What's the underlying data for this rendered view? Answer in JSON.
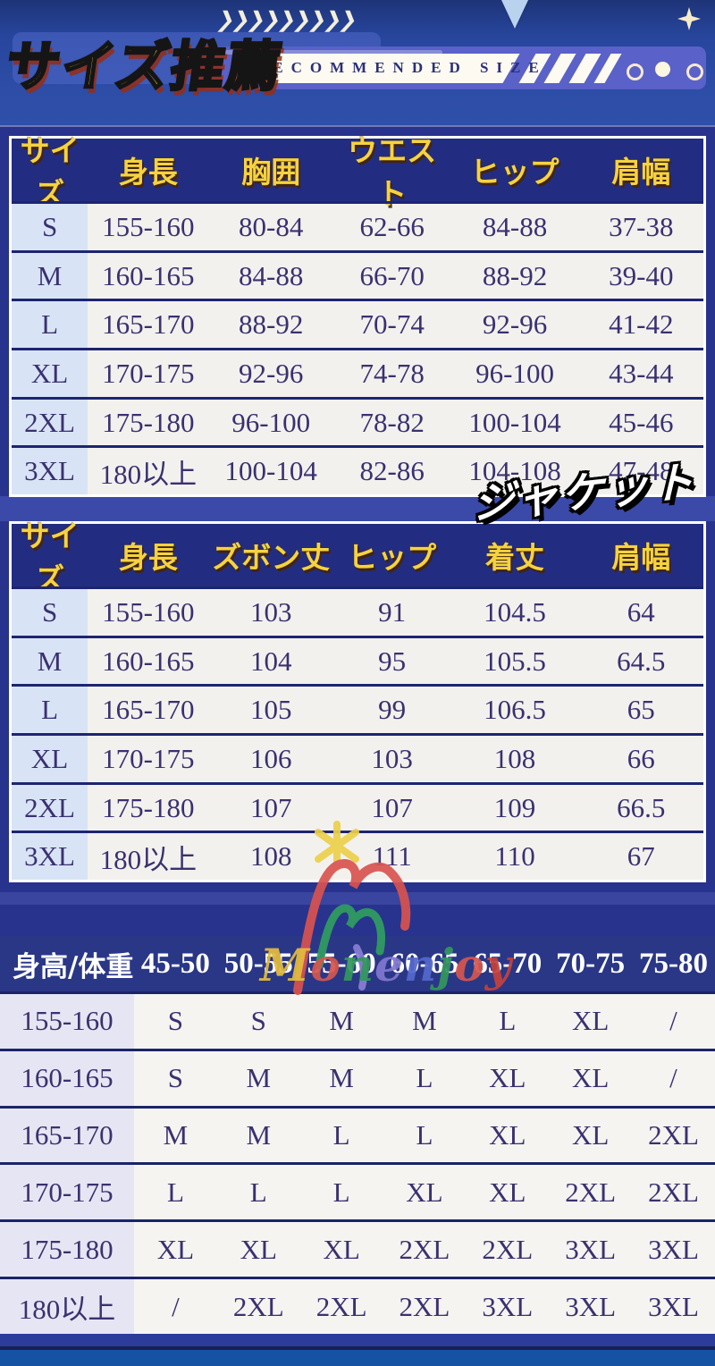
{
  "header": {
    "title": "サイズ推薦",
    "subtitle": "RECOMMENDED SIZE",
    "chevrons": "❯❯❯❯❯❯❯❯❯"
  },
  "jacket_label": "ジャケット",
  "watermark": {
    "letters": [
      {
        "ch": "M",
        "color": "#e3bc3e"
      },
      {
        "ch": "o",
        "color": "#d4574e"
      },
      {
        "ch": "n",
        "color": "#33975c"
      },
      {
        "ch": "e",
        "color": "#8277d2"
      },
      {
        "ch": "n",
        "color": "#5468cc"
      },
      {
        "ch": "j",
        "color": "#33975c"
      },
      {
        "ch": "o",
        "color": "#d4574e"
      },
      {
        "ch": "y",
        "color": "#c4413c"
      }
    ]
  },
  "tables": {
    "tops": {
      "headers": [
        "サイズ",
        "身長",
        "胸囲",
        "ウエスト",
        "ヒップ",
        "肩幅"
      ],
      "rows": [
        [
          "S",
          "155-160",
          "80-84",
          "62-66",
          "84-88",
          "37-38"
        ],
        [
          "M",
          "160-165",
          "84-88",
          "66-70",
          "88-92",
          "39-40"
        ],
        [
          "L",
          "165-170",
          "88-92",
          "70-74",
          "92-96",
          "41-42"
        ],
        [
          "XL",
          "170-175",
          "92-96",
          "74-78",
          "96-100",
          "43-44"
        ],
        [
          "2XL",
          "175-180",
          "96-100",
          "78-82",
          "100-104",
          "45-46"
        ],
        [
          "3XL",
          "180以上",
          "100-104",
          "82-86",
          "104-108",
          "47-48"
        ]
      ]
    },
    "jacket": {
      "headers": [
        "サイズ",
        "身長",
        "ズボン丈",
        "ヒップ",
        "着丈",
        "肩幅"
      ],
      "rows": [
        [
          "S",
          "155-160",
          "103",
          "91",
          "104.5",
          "64"
        ],
        [
          "M",
          "160-165",
          "104",
          "95",
          "105.5",
          "64.5"
        ],
        [
          "L",
          "165-170",
          "105",
          "99",
          "106.5",
          "65"
        ],
        [
          "XL",
          "170-175",
          "106",
          "103",
          "108",
          "66"
        ],
        [
          "2XL",
          "175-180",
          "107",
          "107",
          "109",
          "66.5"
        ],
        [
          "3XL",
          "180以上",
          "108",
          "111",
          "110",
          "67"
        ]
      ]
    },
    "matrix": {
      "headers": [
        "身高/体重",
        "45-50",
        "50-55",
        "55-60",
        "60-65",
        "65-70",
        "70-75",
        "75-80"
      ],
      "rows": [
        [
          "155-160",
          "S",
          "S",
          "M",
          "M",
          "L",
          "XL",
          "/"
        ],
        [
          "160-165",
          "S",
          "M",
          "M",
          "L",
          "XL",
          "XL",
          "/"
        ],
        [
          "165-170",
          "M",
          "M",
          "L",
          "L",
          "XL",
          "XL",
          "2XL"
        ],
        [
          "170-175",
          "L",
          "L",
          "L",
          "XL",
          "XL",
          "2XL",
          "2XL"
        ],
        [
          "175-180",
          "XL",
          "XL",
          "XL",
          "2XL",
          "2XL",
          "3XL",
          "3XL"
        ],
        [
          "180以上",
          "/",
          "2XL",
          "2XL",
          "2XL",
          "3XL",
          "3XL",
          "3XL"
        ]
      ]
    }
  },
  "colors": {
    "accent_yellow": "#f7d338",
    "banner_purple": "#5a61c8",
    "panel_navy": "#28338e",
    "table_header_navy": "#222d82",
    "cell_text": "#3a3170",
    "size_col_blue": "#d8e4f6",
    "matrix_label_lavender": "#e6e5f3"
  }
}
